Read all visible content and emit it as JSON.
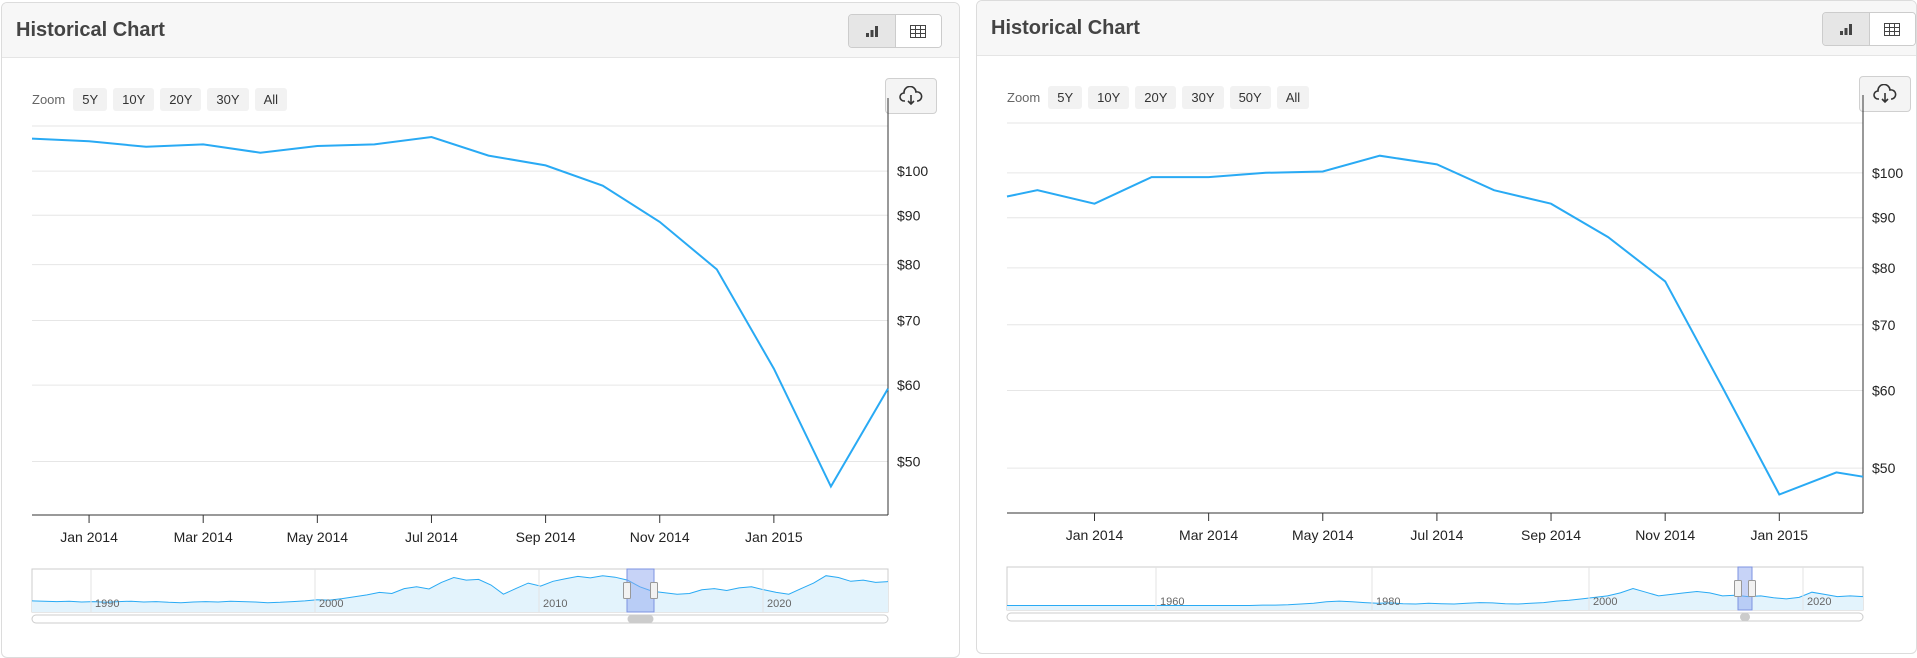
{
  "panels": [
    {
      "title": "Historical Chart",
      "zoom_label": "Zoom",
      "zoom_options": [
        "5Y",
        "10Y",
        "20Y",
        "30Y",
        "All"
      ],
      "view_buttons": [
        {
          "icon": "bar-chart-icon",
          "active": true
        },
        {
          "icon": "table-icon",
          "active": false
        }
      ],
      "download_icon": "cloud-download-icon"
    },
    {
      "title": "Historical Chart",
      "zoom_label": "Zoom",
      "zoom_options": [
        "5Y",
        "10Y",
        "20Y",
        "30Y",
        "50Y",
        "All"
      ],
      "view_buttons": [
        {
          "icon": "bar-chart-icon",
          "active": true
        },
        {
          "icon": "table-icon",
          "active": false
        }
      ],
      "download_icon": "cloud-download-icon"
    }
  ],
  "colors": {
    "line": "#29aaf4",
    "navigator_fill": "#e3f3fc",
    "navigator_selection": "#8fa7f0"
  },
  "chart_data": [
    {
      "type": "line",
      "title": "",
      "x_ticks": [
        "Jan 2014",
        "Mar 2014",
        "May 2014",
        "Jul 2014",
        "Sep 2014",
        "Nov 2014",
        "Jan 2015"
      ],
      "y_ticks": [
        "$50",
        "$60",
        "$70",
        "$80",
        "$90",
        "$100"
      ],
      "y_tick_values": [
        50,
        60,
        70,
        80,
        90,
        100
      ],
      "y_scale": "log",
      "ylim": [
        44,
        113
      ],
      "y_axis_position": "right",
      "grid": true,
      "series": [
        {
          "x": [
            "2013-12",
            "2014-01",
            "2014-02",
            "2014-03",
            "2014-04",
            "2014-05",
            "2014-06",
            "2014-07",
            "2014-08",
            "2014-09",
            "2014-10",
            "2014-11",
            "2014-12",
            "2015-01",
            "2015-02",
            "2015-03"
          ],
          "values": [
            108.1,
            107.4,
            106.0,
            106.6,
            104.5,
            106.2,
            106.6,
            108.5,
            103.8,
            101.4,
            96.6,
            88.6,
            79.1,
            62.4,
            47.1,
            59.5
          ]
        }
      ],
      "navigator": {
        "labels": [
          "1990",
          "2000",
          "2010",
          "2020"
        ],
        "values": [
          22,
          21,
          20,
          21,
          19,
          20,
          18,
          20,
          21,
          19,
          20,
          18,
          17,
          19,
          20,
          19,
          21,
          20,
          19,
          17,
          18,
          20,
          22,
          25,
          24,
          28,
          33,
          38,
          45,
          42,
          55,
          60,
          54,
          72,
          85,
          78,
          80,
          65,
          40,
          55,
          70,
          62,
          75,
          82,
          88,
          84,
          90,
          86,
          78,
          60,
          48,
          44,
          40,
          42,
          52,
          55,
          50,
          57,
          60,
          52,
          45,
          40,
          55,
          70,
          90,
          85,
          75,
          78,
          72,
          74
        ]
      }
    },
    {
      "type": "line",
      "title": "",
      "x_ticks": [
        "Jan 2014",
        "Mar 2014",
        "May 2014",
        "Jul 2014",
        "Sep 2014",
        "Nov 2014",
        "Jan 2015"
      ],
      "y_ticks": [
        "$50",
        "$60",
        "$70",
        "$80",
        "$90",
        "$100"
      ],
      "y_tick_values": [
        50,
        60,
        70,
        80,
        90,
        100
      ],
      "y_scale": "log",
      "ylim": [
        45,
        114
      ],
      "y_axis_position": "right",
      "grid": true,
      "series": [
        {
          "x": [
            "2013-11-15",
            "2013-12",
            "2014-01",
            "2014-02",
            "2014-03",
            "2014-04",
            "2014-05",
            "2014-06",
            "2014-07",
            "2014-08",
            "2014-09",
            "2014-10",
            "2014-11",
            "2014-12",
            "2015-01",
            "2015-02",
            "2015-02-15"
          ],
          "values": [
            94.6,
            96.0,
            93.0,
            99.0,
            99.0,
            100.0,
            100.3,
            104.1,
            102.0,
            96.0,
            93.0,
            86.0,
            77.5,
            60.5,
            47.0,
            49.5,
            49.0
          ]
        }
      ],
      "navigator": {
        "labels": [
          "1960",
          "1980",
          "2000",
          "2020"
        ],
        "values": [
          4,
          4,
          4,
          4,
          4,
          4,
          4,
          4,
          4,
          4,
          4,
          4,
          4,
          4,
          4,
          4,
          4,
          4,
          4,
          4,
          5,
          5,
          6,
          8,
          10,
          14,
          16,
          14,
          12,
          10,
          11,
          9,
          8,
          10,
          9,
          8,
          10,
          12,
          11,
          9,
          8,
          10,
          12,
          16,
          18,
          22,
          26,
          30,
          38,
          50,
          40,
          30,
          34,
          38,
          42,
          38,
          30,
          32,
          28,
          30,
          25,
          22,
          26,
          40,
          34,
          28,
          30,
          28
        ]
      }
    }
  ]
}
